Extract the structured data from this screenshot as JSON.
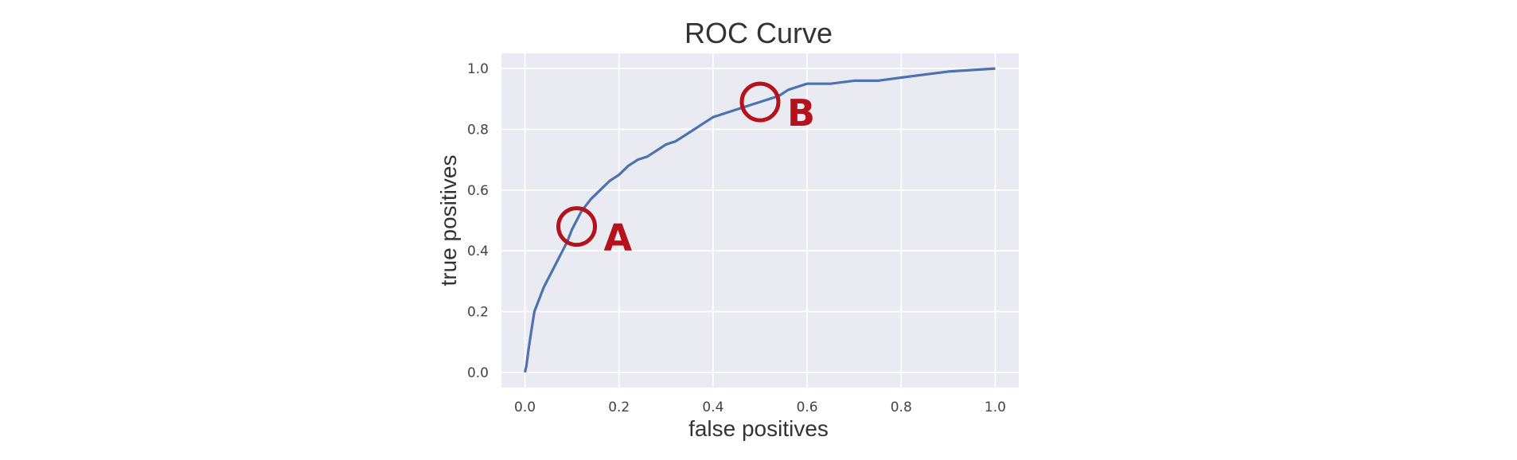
{
  "chart_data": {
    "type": "line",
    "title": "ROC Curve",
    "xlabel": "false positives",
    "ylabel": "true positives",
    "xlim": [
      -0.05,
      1.05
    ],
    "ylim": [
      -0.05,
      1.05
    ],
    "xticks": [
      0.0,
      0.2,
      0.4,
      0.6,
      0.8,
      1.0
    ],
    "yticks": [
      0.0,
      0.2,
      0.4,
      0.6,
      0.8,
      1.0
    ],
    "tick_labels_x": [
      "0.0",
      "0.2",
      "0.4",
      "0.6",
      "0.8",
      "1.0"
    ],
    "tick_labels_y": [
      "0.0",
      "0.2",
      "0.4",
      "0.6",
      "0.8",
      "1.0"
    ],
    "grid": true,
    "background_color": "#eaeaf2",
    "series": [
      {
        "color": "#4c72b0",
        "x": [
          0.0,
          0.003,
          0.008,
          0.013,
          0.02,
          0.03,
          0.04,
          0.05,
          0.06,
          0.07,
          0.08,
          0.09,
          0.1,
          0.12,
          0.14,
          0.16,
          0.18,
          0.2,
          0.22,
          0.24,
          0.26,
          0.28,
          0.3,
          0.32,
          0.34,
          0.36,
          0.38,
          0.4,
          0.42,
          0.44,
          0.46,
          0.48,
          0.5,
          0.52,
          0.54,
          0.56,
          0.58,
          0.6,
          0.65,
          0.7,
          0.75,
          0.8,
          0.85,
          0.9,
          0.95,
          1.0
        ],
        "y": [
          0.0,
          0.02,
          0.08,
          0.13,
          0.2,
          0.24,
          0.28,
          0.31,
          0.34,
          0.37,
          0.4,
          0.43,
          0.47,
          0.53,
          0.57,
          0.6,
          0.63,
          0.65,
          0.68,
          0.7,
          0.71,
          0.73,
          0.75,
          0.76,
          0.78,
          0.8,
          0.82,
          0.84,
          0.85,
          0.86,
          0.87,
          0.88,
          0.89,
          0.9,
          0.91,
          0.93,
          0.94,
          0.95,
          0.95,
          0.96,
          0.96,
          0.97,
          0.98,
          0.99,
          0.995,
          1.0
        ]
      }
    ],
    "annotations": [
      {
        "label": "A",
        "x": 0.11,
        "y": 0.48,
        "color": "#b5121b"
      },
      {
        "label": "B",
        "x": 0.5,
        "y": 0.89,
        "color": "#b5121b"
      }
    ]
  }
}
